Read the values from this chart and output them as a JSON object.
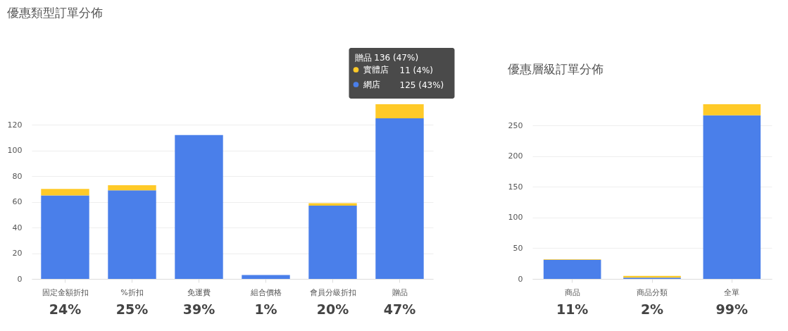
{
  "chart_data": [
    {
      "type": "bar",
      "stacked": true,
      "title": "優惠類型訂單分佈",
      "categories": [
        "固定金額折扣",
        "%折扣",
        "免運費",
        "組合價格",
        "會員分級折扣",
        "贈品"
      ],
      "series": [
        {
          "name": "網店",
          "color": "#4a7fea",
          "values": [
            65,
            69,
            112,
            3,
            57,
            125
          ]
        },
        {
          "name": "實體店",
          "color": "#ffca28",
          "values": [
            5,
            4,
            0,
            0,
            2,
            11
          ]
        }
      ],
      "ylim": [
        0,
        136
      ],
      "yticks": [
        0,
        20,
        40,
        60,
        80,
        100,
        120
      ],
      "grid": "y",
      "legend": "top right",
      "annotations": [
        "贈品  136 (47%)",
        "11 (4%)",
        "125 (43%)",
        "24%",
        "25%",
        "39%",
        "1%",
        "20%",
        "47%"
      ]
    },
    {
      "type": "bar",
      "stacked": true,
      "title": "優惠層級訂單分佈",
      "categories": [
        "商品",
        "商品分類",
        "全單"
      ],
      "series": [
        {
          "color": "#4a7fea",
          "values": [
            31,
            2,
            267
          ]
        },
        {
          "color": "#ffca28",
          "values": [
            1,
            3,
            18
          ]
        }
      ],
      "ylim": [
        0,
        285
      ],
      "yticks": [
        0,
        50,
        100,
        150,
        200,
        250
      ],
      "grid": "y",
      "annotations": [
        "11%",
        "2%",
        "99%"
      ]
    }
  ]
}
